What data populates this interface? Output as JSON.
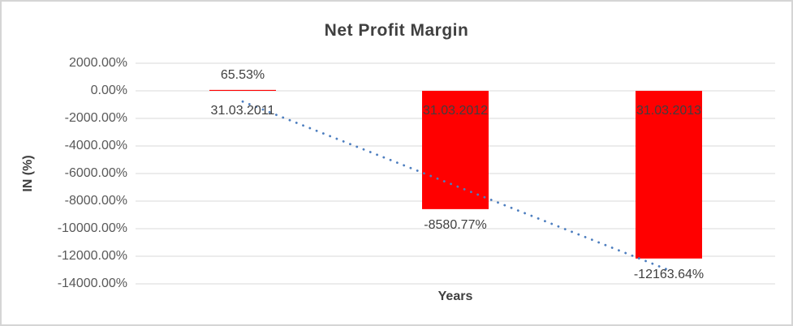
{
  "chart_data": {
    "type": "bar",
    "title": "Net Profit Margin",
    "xlabel": "Years",
    "ylabel": "IN (%)",
    "categories": [
      "31.03.2011",
      "31.03.2012",
      "31.03.2013"
    ],
    "values": [
      65.53,
      -8580.77,
      -12163.64
    ],
    "data_labels": [
      "65.53%",
      "-8580.77%",
      "-12163.64%"
    ],
    "series": [
      {
        "name": "Net Profit Margin",
        "values": [
          65.53,
          -8580.77,
          -12163.64
        ]
      }
    ],
    "y_ticks": [
      {
        "value": 2000,
        "label": "2000.00%"
      },
      {
        "value": 0,
        "label": "0.00%"
      },
      {
        "value": -2000,
        "label": "-2000.00%"
      },
      {
        "value": -4000,
        "label": "-4000.00%"
      },
      {
        "value": -6000,
        "label": "-6000.00%"
      },
      {
        "value": -8000,
        "label": "-8000.00%"
      },
      {
        "value": -10000,
        "label": "-10000.00%"
      },
      {
        "value": -12000,
        "label": "-12000.00%"
      },
      {
        "value": -14000,
        "label": "-14000.00%"
      }
    ],
    "ylim": [
      -14000,
      2000
    ],
    "grid": true,
    "legend": "none",
    "trendline": {
      "type": "linear",
      "style": "dotted"
    },
    "colors": {
      "bar": "#ff0000",
      "trendline": "#4d7ebf",
      "gridline": "#d9d9d9",
      "title_text": "#404040",
      "tick_text": "#595959",
      "label_text": "#3f3f3f",
      "chart_border": "#d5d5d5",
      "background": "#ffffff"
    }
  }
}
